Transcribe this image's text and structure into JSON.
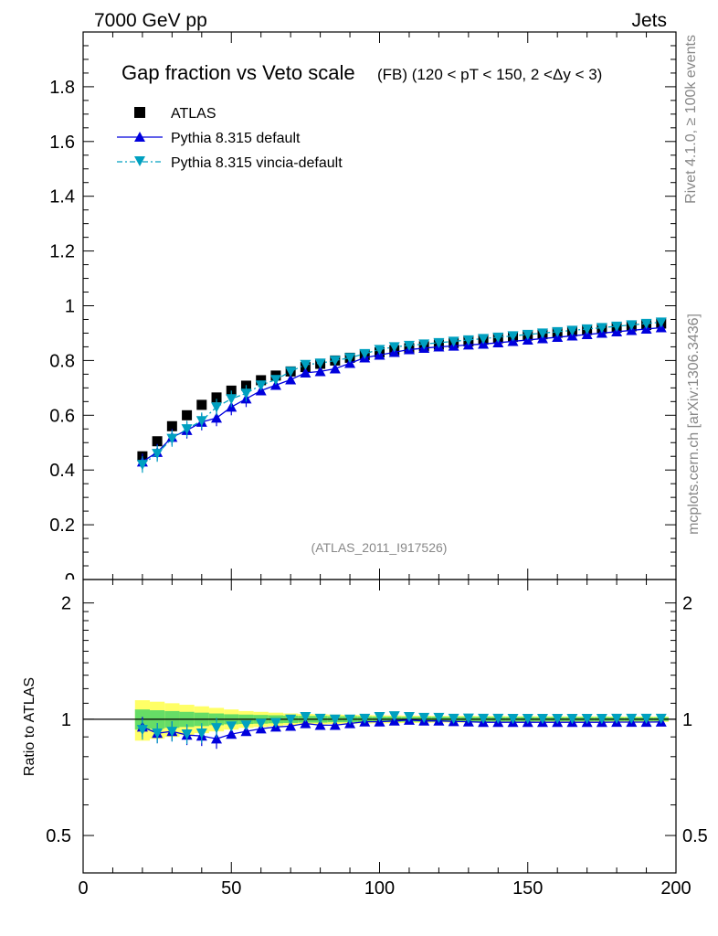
{
  "header": {
    "energy_label": "7000 GeV pp",
    "category_label": "Jets"
  },
  "side": {
    "rivet_label": "Rivet 4.1.0, ≥ 100k events",
    "site_label": "mcplots.cern.ch [arXiv:1306.3436]"
  },
  "chart_data": [
    {
      "type": "scatter",
      "panel": "main",
      "title": "Gap fraction vs Veto scale",
      "subtitle": "(FB) (120 < pT < 150, 2 <Δy < 3)",
      "analysis_label": "(ATLAS_2011_I917526)",
      "xlabel": "",
      "ylabel": "",
      "xlim": [
        0,
        200
      ],
      "ylim": [
        0,
        2.0
      ],
      "yticks": [
        0.2,
        0.4,
        0.6,
        0.8,
        1,
        1.2,
        1.4,
        1.6,
        1.8
      ],
      "ytick_labels": [
        "0.2",
        "0.4",
        "0.6",
        "0.8",
        "1",
        "1.2",
        "1.4",
        "1.6",
        "1.8"
      ],
      "bottom_tick_label": "0",
      "legend_position": "top-left",
      "x": [
        20,
        25,
        30,
        35,
        40,
        45,
        50,
        55,
        60,
        65,
        70,
        75,
        80,
        85,
        90,
        95,
        100,
        105,
        110,
        115,
        120,
        125,
        130,
        135,
        140,
        145,
        150,
        155,
        160,
        165,
        170,
        175,
        180,
        185,
        190,
        195
      ],
      "series": [
        {
          "name": "ATLAS",
          "color": "#000000",
          "marker": "square",
          "values": [
            0.45,
            0.505,
            0.56,
            0.6,
            0.638,
            0.665,
            0.69,
            0.708,
            0.728,
            0.745,
            0.76,
            0.776,
            0.788,
            0.8,
            0.81,
            0.82,
            0.83,
            0.838,
            0.845,
            0.852,
            0.858,
            0.864,
            0.87,
            0.876,
            0.881,
            0.886,
            0.891,
            0.896,
            0.901,
            0.906,
            0.911,
            0.916,
            0.92,
            0.925,
            0.93,
            0.935
          ]
        },
        {
          "name": "Pythia 8.315 default",
          "color": "#0000dd",
          "marker": "triangle-up",
          "line": "solid",
          "values": [
            0.43,
            0.465,
            0.52,
            0.545,
            0.575,
            0.59,
            0.63,
            0.66,
            0.69,
            0.71,
            0.73,
            0.755,
            0.76,
            0.77,
            0.79,
            0.81,
            0.82,
            0.83,
            0.84,
            0.845,
            0.85,
            0.853,
            0.857,
            0.86,
            0.865,
            0.87,
            0.875,
            0.88,
            0.885,
            0.89,
            0.895,
            0.9,
            0.905,
            0.91,
            0.915,
            0.92
          ]
        },
        {
          "name": "Pythia 8.315 vincia-default",
          "color": "#00a0c0",
          "marker": "triangle-down",
          "line": "dashdot",
          "values": [
            0.42,
            0.46,
            0.515,
            0.55,
            0.58,
            0.63,
            0.66,
            0.68,
            0.71,
            0.73,
            0.76,
            0.785,
            0.79,
            0.8,
            0.81,
            0.825,
            0.84,
            0.85,
            0.855,
            0.86,
            0.865,
            0.87,
            0.875,
            0.88,
            0.885,
            0.89,
            0.895,
            0.9,
            0.905,
            0.91,
            0.915,
            0.92,
            0.925,
            0.93,
            0.935,
            0.94
          ]
        }
      ]
    },
    {
      "type": "scatter",
      "panel": "ratio",
      "ylabel": "Ratio to ATLAS",
      "xlabel": "",
      "xlim": [
        0,
        200
      ],
      "ylim": [
        0.4,
        2.3
      ],
      "yscale": "log",
      "yticks": [
        0.5,
        1,
        2
      ],
      "ytick_labels": [
        "0.5",
        "1",
        "2"
      ],
      "xticks": [
        0,
        50,
        100,
        150,
        200
      ],
      "xtick_labels": [
        "0",
        "50",
        "100",
        "150",
        "200"
      ],
      "x": [
        20,
        25,
        30,
        35,
        40,
        45,
        50,
        55,
        60,
        65,
        70,
        75,
        80,
        85,
        90,
        95,
        100,
        105,
        110,
        115,
        120,
        125,
        130,
        135,
        140,
        145,
        150,
        155,
        160,
        165,
        170,
        175,
        180,
        185,
        190,
        195
      ],
      "band_stat": [
        0.06,
        0.055,
        0.05,
        0.045,
        0.04,
        0.035,
        0.03,
        0.028,
        0.026,
        0.024,
        0.022,
        0.02,
        0.02,
        0.018,
        0.018,
        0.017,
        0.016,
        0.016,
        0.015,
        0.015,
        0.015,
        0.014,
        0.014,
        0.014,
        0.013,
        0.013,
        0.013,
        0.012,
        0.012,
        0.012,
        0.012,
        0.012,
        0.011,
        0.011,
        0.011,
        0.011
      ],
      "band_total": [
        0.12,
        0.11,
        0.1,
        0.09,
        0.08,
        0.07,
        0.06,
        0.05,
        0.045,
        0.04,
        0.035,
        0.032,
        0.03,
        0.028,
        0.026,
        0.025,
        0.024,
        0.023,
        0.022,
        0.021,
        0.02,
        0.02,
        0.02,
        0.019,
        0.019,
        0.018,
        0.018,
        0.018,
        0.017,
        0.017,
        0.017,
        0.017,
        0.016,
        0.016,
        0.016,
        0.016
      ],
      "band_stat_color": "#66dd66",
      "band_total_color": "#ffff66",
      "series": [
        {
          "name": "Pythia 8.315 default",
          "color": "#0000dd",
          "marker": "triangle-up",
          "values": [
            0.955,
            0.92,
            0.93,
            0.91,
            0.905,
            0.89,
            0.915,
            0.93,
            0.945,
            0.955,
            0.96,
            0.975,
            0.965,
            0.965,
            0.975,
            0.985,
            0.985,
            0.99,
            0.995,
            0.99,
            0.99,
            0.987,
            0.985,
            0.982,
            0.982,
            0.982,
            0.982,
            0.982,
            0.982,
            0.982,
            0.982,
            0.982,
            0.983,
            0.983,
            0.983,
            0.984
          ]
        },
        {
          "name": "Pythia 8.315 vincia-default",
          "color": "#00a0c0",
          "marker": "triangle-down",
          "values": [
            0.94,
            0.92,
            0.93,
            0.915,
            0.92,
            0.95,
            0.96,
            0.965,
            0.975,
            0.98,
            1.0,
            1.015,
            1.005,
            1.0,
            1.0,
            1.005,
            1.015,
            1.02,
            1.015,
            1.01,
            1.01,
            1.005,
            1.006,
            1.005,
            1.005,
            1.004,
            1.004,
            1.004,
            1.004,
            1.004,
            1.004,
            1.004,
            1.005,
            1.005,
            1.005,
            1.005
          ]
        }
      ]
    }
  ]
}
